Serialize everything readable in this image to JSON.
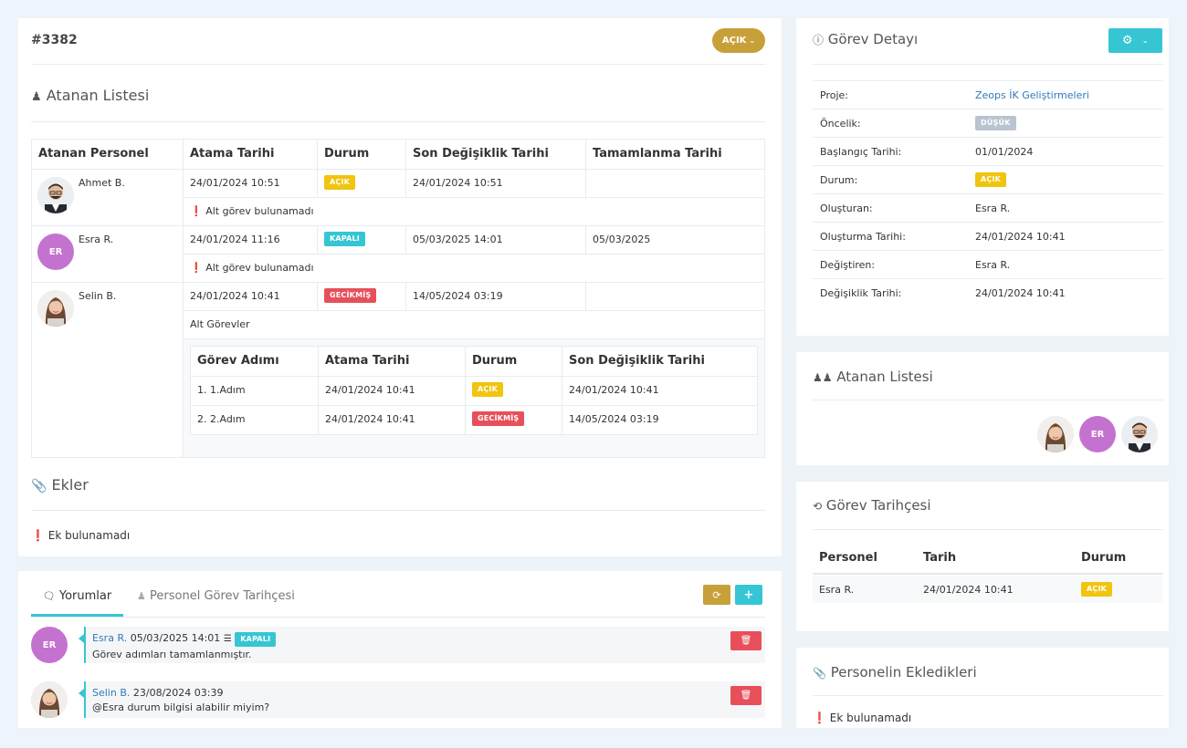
{
  "task": {
    "id": "#3382",
    "status_button": "AÇIK"
  },
  "assigned": {
    "title": "Atanan Listesi",
    "headers": [
      "Atanan Personel",
      "Atama Tarihi",
      "Durum",
      "Son Değişiklik Tarihi",
      "Tamamlanma Tarihi"
    ],
    "rows": [
      {
        "name": "Ahmet B.",
        "assign_date": "24/01/2024 10:51",
        "status": "AÇIK",
        "last_change": "24/01/2024 10:51",
        "completion": "",
        "note": "Alt görev bulunamadı"
      },
      {
        "name": "Esra R.",
        "initials": "ER",
        "assign_date": "24/01/2024 11:16",
        "status": "KAPALI",
        "last_change": "05/03/2025 14:01",
        "completion": "05/03/2025",
        "note": "Alt görev bulunamadı"
      },
      {
        "name": "Selin B.",
        "assign_date": "24/01/2024 10:41",
        "status": "GECİKMİŞ",
        "last_change": "14/05/2024 03:19",
        "completion": "",
        "subtasks_label": "Alt Görevler"
      }
    ],
    "subtask_headers": [
      "Görev Adımı",
      "Atama Tarihi",
      "Durum",
      "Son Değişiklik Tarihi"
    ],
    "subtasks": [
      {
        "step": "1. 1.Adım",
        "assign_date": "24/01/2024 10:41",
        "status": "AÇIK",
        "last_change": "24/01/2024 10:41"
      },
      {
        "step": "2. 2.Adım",
        "assign_date": "24/01/2024 10:41",
        "status": "GECİKMİŞ",
        "last_change": "14/05/2024 03:19"
      }
    ]
  },
  "attachments": {
    "title": "Ekler",
    "empty": "Ek bulunamadı"
  },
  "comments": {
    "tabs": [
      "Yorumlar",
      "Personel Görev Tarihçesi"
    ],
    "items": [
      {
        "author": "Esra R.",
        "initials": "ER",
        "date": "05/03/2025 14:01",
        "badge": "KAPALI",
        "text": "Görev adımları tamamlanmıştır."
      },
      {
        "author": "Selin B.",
        "date": "23/08/2024 03:39",
        "text": "@Esra durum bilgisi alabilir miyim?"
      }
    ]
  },
  "detail": {
    "title": "Görev Detayı",
    "rows": [
      {
        "label": "Proje:",
        "value": "Zeops İK Geliştirmeleri"
      },
      {
        "label": "Öncelik:",
        "badge": "DÜŞÜK"
      },
      {
        "label": "Başlangıç Tarihi:",
        "value": "01/01/2024"
      },
      {
        "label": "Durum:",
        "badge": "AÇIK"
      },
      {
        "label": "Oluşturan:",
        "value": "Esra R."
      },
      {
        "label": "Oluşturma Tarihi:",
        "value": "24/01/2024 10:41"
      },
      {
        "label": "Değiştiren:",
        "value": "Esra R."
      },
      {
        "label": "Değişiklik Tarihi:",
        "value": "24/01/2024 10:41"
      }
    ]
  },
  "assigned_side": {
    "title": "Atanan Listesi",
    "initials": "ER"
  },
  "history": {
    "title": "Görev Tarihçesi",
    "headers": [
      "Personel",
      "Tarih",
      "Durum"
    ],
    "rows": [
      {
        "person": "Esra R.",
        "date": "24/01/2024 10:41",
        "status": "AÇIK"
      }
    ]
  },
  "added": {
    "title": "Personelin Ekledikleri",
    "empty": "Ek bulunamadı"
  },
  "colors": {
    "gold": "#c8a03a",
    "cyan": "#36c6d3",
    "red": "#e7505a",
    "yellow": "#f1c40f",
    "purple": "#c472cf",
    "link": "#337ab7"
  }
}
